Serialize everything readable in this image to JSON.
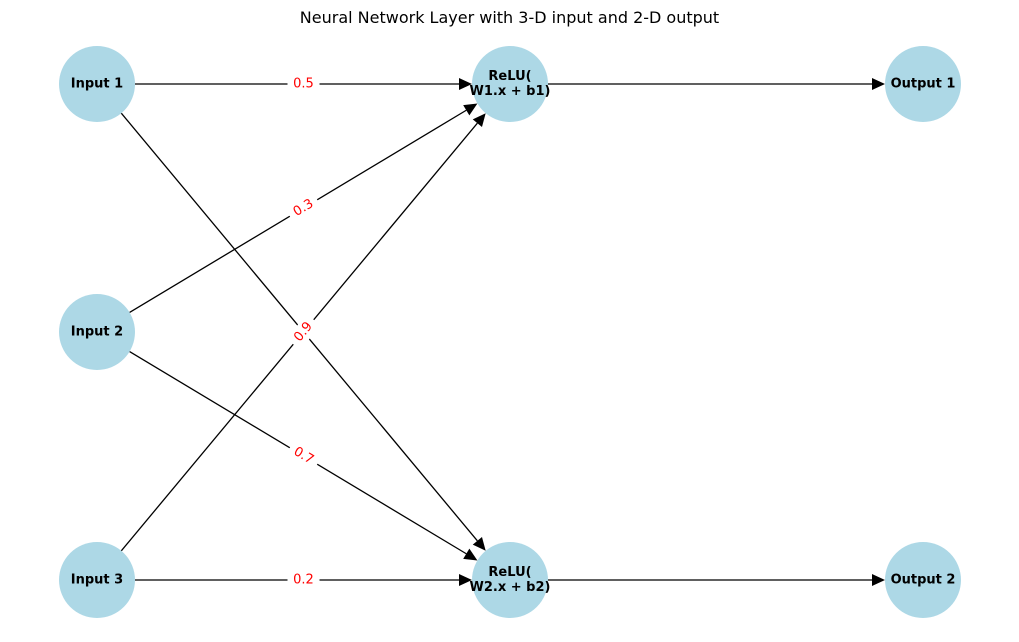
{
  "title": "Neural Network Layer with 3-D input and 2-D output",
  "colors": {
    "node_fill": "#add8e6",
    "edge": "#000000",
    "weight_text": "#ff0000"
  },
  "nodes": [
    {
      "id": "input1",
      "lines": [
        "Input 1"
      ]
    },
    {
      "id": "input2",
      "lines": [
        "Input 2"
      ]
    },
    {
      "id": "input3",
      "lines": [
        "Input 3"
      ]
    },
    {
      "id": "relu1",
      "lines": [
        "ReLU(",
        "W1.x + b1)"
      ]
    },
    {
      "id": "relu2",
      "lines": [
        "ReLU(",
        "W2.x + b2)"
      ]
    },
    {
      "id": "output1",
      "lines": [
        "Output 1"
      ]
    },
    {
      "id": "output2",
      "lines": [
        "Output 2"
      ]
    }
  ],
  "edges": [
    {
      "from": "input1",
      "to": "relu1",
      "weight": "0.5"
    },
    {
      "from": "input2",
      "to": "relu1",
      "weight": "0.3"
    },
    {
      "from": "input3",
      "to": "relu1",
      "weight": "0.9"
    },
    {
      "from": "input1",
      "to": "relu2",
      "weight": ""
    },
    {
      "from": "input2",
      "to": "relu2",
      "weight": "0.7"
    },
    {
      "from": "input3",
      "to": "relu2",
      "weight": "0.2"
    },
    {
      "from": "relu1",
      "to": "output1",
      "weight": ""
    },
    {
      "from": "relu2",
      "to": "output2",
      "weight": ""
    }
  ]
}
